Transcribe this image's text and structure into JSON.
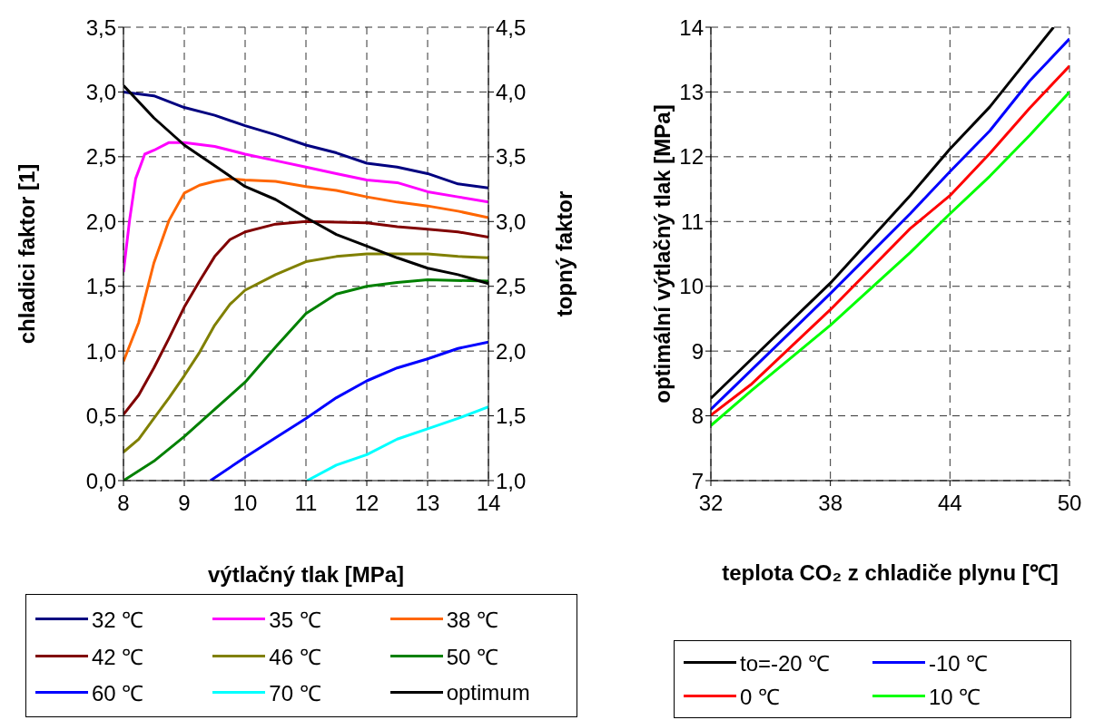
{
  "chart_data": [
    {
      "type": "line",
      "xlabel": "výtlačný tlak [MPa]",
      "ylabel": "chladici faktor [1]",
      "y2label": "topný faktor",
      "xlim": [
        8,
        14
      ],
      "xticks": [
        8,
        9,
        10,
        11,
        12,
        13,
        14
      ],
      "ylim": [
        0,
        3.5
      ],
      "yticks": [
        {
          "value": 0,
          "label": "0,0"
        },
        {
          "value": 0.5,
          "label": "0,5"
        },
        {
          "value": 1,
          "label": "1,0"
        },
        {
          "value": 1.5,
          "label": "1,5"
        },
        {
          "value": 2,
          "label": "2,0"
        },
        {
          "value": 2.5,
          "label": "2,5"
        },
        {
          "value": 3,
          "label": "3,0"
        },
        {
          "value": 3.5,
          "label": "3,5"
        }
      ],
      "y2lim": [
        1,
        4.5
      ],
      "y2ticks": [
        {
          "value": 1,
          "label": "1,0"
        },
        {
          "value": 1.5,
          "label": "1,5"
        },
        {
          "value": 2,
          "label": "2,0"
        },
        {
          "value": 2.5,
          "label": "2,5"
        },
        {
          "value": 3,
          "label": "3,0"
        },
        {
          "value": 3.5,
          "label": "3,5"
        },
        {
          "value": 4,
          "label": "4,0"
        },
        {
          "value": 4.5,
          "label": "4,5"
        }
      ],
      "grid": true,
      "legend": "bottom",
      "marker": "none",
      "line_style": "solid",
      "series": [
        {
          "name": "32 ℃",
          "color": "#000080",
          "x": [
            8,
            8.5,
            9,
            9.5,
            10,
            10.5,
            11,
            11.5,
            12,
            12.5,
            13,
            13.5,
            14
          ],
          "values": [
            3.0,
            2.97,
            2.88,
            2.82,
            2.74,
            2.67,
            2.59,
            2.53,
            2.45,
            2.42,
            2.37,
            2.29,
            2.26
          ]
        },
        {
          "name": "35 ℃",
          "color": "#ff00ff",
          "x": [
            8,
            8.1,
            8.2,
            8.35,
            8.5,
            8.75,
            9,
            9.5,
            10,
            10.5,
            11,
            11.5,
            12,
            12.5,
            13,
            13.5,
            14
          ],
          "values": [
            1.61,
            2.01,
            2.33,
            2.52,
            2.55,
            2.61,
            2.61,
            2.58,
            2.52,
            2.47,
            2.42,
            2.37,
            2.32,
            2.3,
            2.23,
            2.19,
            2.15
          ]
        },
        {
          "name": "38 ℃",
          "color": "#ff6600",
          "x": [
            8,
            8.25,
            8.5,
            8.75,
            9,
            9.25,
            9.5,
            9.75,
            10,
            10.5,
            11,
            11.5,
            12,
            12.5,
            13,
            13.5,
            14
          ],
          "values": [
            0.92,
            1.22,
            1.68,
            2.01,
            2.22,
            2.28,
            2.31,
            2.33,
            2.32,
            2.31,
            2.27,
            2.24,
            2.19,
            2.15,
            2.12,
            2.08,
            2.03
          ]
        },
        {
          "name": "42 ℃",
          "color": "#800000",
          "x": [
            8,
            8.25,
            8.5,
            8.75,
            9,
            9.25,
            9.5,
            9.75,
            10,
            10.5,
            11,
            12,
            12.5,
            13,
            13.5,
            14
          ],
          "values": [
            0.51,
            0.66,
            0.87,
            1.1,
            1.34,
            1.54,
            1.73,
            1.86,
            1.92,
            1.98,
            2.0,
            1.99,
            1.96,
            1.94,
            1.92,
            1.88
          ]
        },
        {
          "name": "46 ℃",
          "color": "#808000",
          "x": [
            8,
            8.25,
            8.5,
            8.75,
            9,
            9.25,
            9.5,
            9.75,
            10,
            10.5,
            11,
            11.5,
            12,
            13,
            13.5,
            14
          ],
          "values": [
            0.22,
            0.32,
            0.48,
            0.64,
            0.81,
            0.99,
            1.2,
            1.36,
            1.47,
            1.59,
            1.69,
            1.73,
            1.75,
            1.75,
            1.73,
            1.72
          ]
        },
        {
          "name": "50 ℃",
          "color": "#008000",
          "x": [
            8,
            8.5,
            9,
            9.5,
            10,
            10.5,
            11,
            11.5,
            12,
            12.5,
            13,
            14
          ],
          "values": [
            0,
            0.15,
            0.34,
            0.55,
            0.76,
            1.03,
            1.29,
            1.44,
            1.5,
            1.53,
            1.55,
            1.54
          ]
        },
        {
          "name": "60 ℃",
          "color": "#0000ff",
          "x": [
            9.43,
            10,
            10.5,
            11,
            11.5,
            12,
            12.5,
            13,
            13.5,
            14
          ],
          "values": [
            0,
            0.18,
            0.33,
            0.48,
            0.64,
            0.77,
            0.87,
            0.94,
            1.02,
            1.07
          ]
        },
        {
          "name": "70 ℃",
          "color": "#00ffff",
          "x": [
            11.02,
            11.5,
            12,
            12.5,
            13,
            13.5,
            14
          ],
          "values": [
            0,
            0.12,
            0.2,
            0.32,
            0.4,
            0.48,
            0.57
          ]
        },
        {
          "name": "optimum",
          "color": "#000000",
          "x": [
            8,
            8.5,
            9,
            9.5,
            10,
            10.5,
            11,
            11.5,
            12,
            12.5,
            13,
            13.5,
            14
          ],
          "values": [
            3.05,
            2.8,
            2.59,
            2.43,
            2.27,
            2.17,
            2.03,
            1.9,
            1.81,
            1.72,
            1.64,
            1.59,
            1.52
          ]
        }
      ]
    },
    {
      "type": "line",
      "xlabel": "teplota CO₂ z chladiče plynu [℃]",
      "ylabel": "optimální výtlačný tlak  [MPa]",
      "xlim": [
        32,
        50
      ],
      "xticks": [
        32,
        38,
        44,
        50
      ],
      "ylim": [
        7,
        14
      ],
      "yticks": [
        7,
        8,
        9,
        10,
        11,
        12,
        13,
        14
      ],
      "grid": true,
      "legend": "bottom",
      "marker": "none",
      "line_style": "solid",
      "series": [
        {
          "name": "to=-20 ℃",
          "color": "#000000",
          "x": [
            32,
            38,
            42,
            44,
            46,
            48,
            49.2
          ],
          "values": [
            8.27,
            10.05,
            11.4,
            12.12,
            12.77,
            13.54,
            14
          ]
        },
        {
          "name": "-10 ℃",
          "color": "#0000ff",
          "x": [
            32,
            38,
            42,
            44,
            46,
            48,
            50
          ],
          "values": [
            8.1,
            9.89,
            11.12,
            11.77,
            12.4,
            13.17,
            13.82
          ]
        },
        {
          "name": "0 ℃",
          "color": "#ff0000",
          "x": [
            32,
            34,
            38,
            42,
            44,
            46,
            48,
            50
          ],
          "values": [
            8.01,
            8.48,
            9.64,
            10.89,
            11.4,
            12.05,
            12.75,
            13.4
          ]
        },
        {
          "name": "10 ℃",
          "color": "#00ff00",
          "x": [
            32,
            34,
            38,
            42,
            44,
            46,
            48,
            50
          ],
          "values": [
            7.85,
            8.38,
            9.4,
            10.52,
            11.12,
            11.7,
            12.33,
            13.0
          ]
        }
      ]
    }
  ]
}
